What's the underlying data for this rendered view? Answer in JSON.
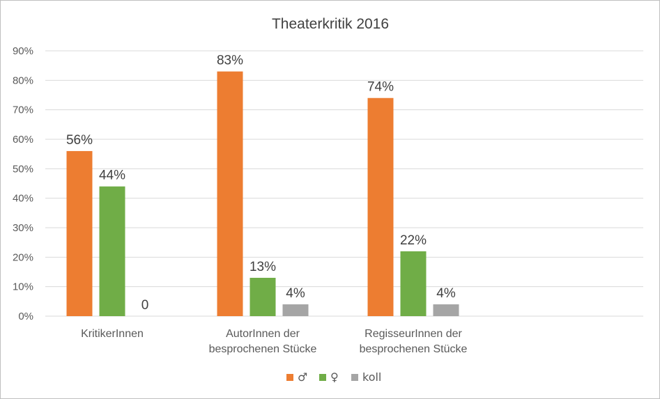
{
  "chart_data": {
    "type": "bar",
    "title": "Theaterkritik 2016",
    "categories": [
      [
        "KritikerInnen"
      ],
      [
        "AutorInnen der",
        "besprochenen Stücke"
      ],
      [
        "RegisseurInnen der",
        "besprochenen Stücke"
      ]
    ],
    "series": [
      {
        "name": "♂",
        "color": "#ED7D31",
        "values": [
          56,
          83,
          74
        ],
        "labels": [
          "56%",
          "83%",
          "74%"
        ]
      },
      {
        "name": "♀",
        "color": "#70AD47",
        "values": [
          44,
          13,
          22
        ],
        "labels": [
          "44%",
          "13%",
          "22%"
        ]
      },
      {
        "name": "koll",
        "color": "#A5A5A5",
        "values": [
          0,
          4,
          4
        ],
        "labels": [
          "0",
          "4%",
          "4%"
        ]
      }
    ],
    "y_ticks": [
      "0%",
      "10%",
      "20%",
      "30%",
      "40%",
      "50%",
      "60%",
      "70%",
      "80%",
      "90%"
    ],
    "ylim": [
      0,
      90
    ],
    "y_unit": "percent",
    "grid": true,
    "legend_position": "bottom",
    "gridline_color": "#D9D9D9"
  }
}
